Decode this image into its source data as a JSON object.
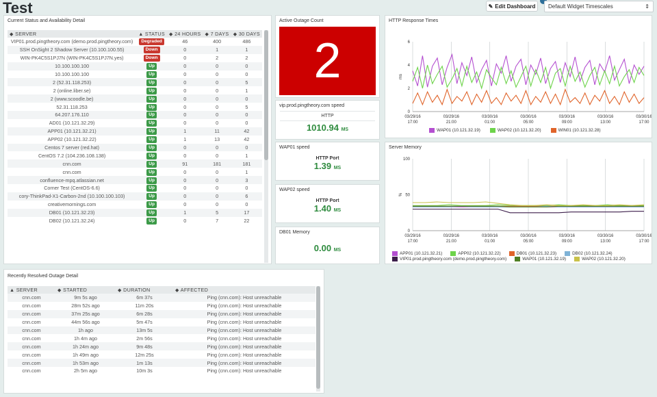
{
  "page": {
    "title": "Test"
  },
  "toolbar": {
    "edit_label": "Edit Dashboard",
    "edit_icon": "✎",
    "timescale": "Default Widget Timescales",
    "timescale_icon": "⇕"
  },
  "status": {
    "title": "Current Status and Availability Detail",
    "headers": {
      "server": "◆ SERVER",
      "status": "▲ STATUS",
      "h24": "◆ 24 HOURS",
      "d7": "◆ 7 DAYS",
      "d30": "◆ 30 DAYS"
    },
    "rows": [
      {
        "server": "VIP01.prod.pingtheory.com (demo.prod.pingtheory.com)",
        "status": "Degraded",
        "h24": "46",
        "d7": "400",
        "d30": "486"
      },
      {
        "server": "SSH OnSight 2 Shadow Server (10.100.100.55)",
        "status": "Down",
        "h24": "0",
        "d7": "1",
        "d30": "1"
      },
      {
        "server": "WIN-PK4C5S1PJ7N (WIN-PK4C5S1PJ7N.yes)",
        "status": "Down",
        "h24": "0",
        "d7": "2",
        "d30": "2"
      },
      {
        "server": "10.100.100.100",
        "status": "Up",
        "h24": "0",
        "d7": "0",
        "d30": "0"
      },
      {
        "server": "10.100.100.100",
        "status": "Up",
        "h24": "0",
        "d7": "0",
        "d30": "0"
      },
      {
        "server": "2 (52.31.118.253)",
        "status": "Up",
        "h24": "0",
        "d7": "0",
        "d30": "5"
      },
      {
        "server": "2 (online.liber.se)",
        "status": "Up",
        "h24": "0",
        "d7": "0",
        "d30": "1"
      },
      {
        "server": "2 (www.scoodle.be)",
        "status": "Up",
        "h24": "0",
        "d7": "0",
        "d30": "0"
      },
      {
        "server": "52.31.118.253",
        "status": "Up",
        "h24": "0",
        "d7": "0",
        "d30": "5"
      },
      {
        "server": "64.207.176.110",
        "status": "Up",
        "h24": "0",
        "d7": "0",
        "d30": "0"
      },
      {
        "server": "AD01 (10.121.32.29)",
        "status": "Up",
        "h24": "0",
        "d7": "0",
        "d30": "0"
      },
      {
        "server": "APP01 (10.121.32.21)",
        "status": "Up",
        "h24": "1",
        "d7": "11",
        "d30": "42"
      },
      {
        "server": "APP02 (10.121.32.22)",
        "status": "Up",
        "h24": "1",
        "d7": "13",
        "d30": "42"
      },
      {
        "server": "Centos 7 server (red.hat)",
        "status": "Up",
        "h24": "0",
        "d7": "0",
        "d30": "0"
      },
      {
        "server": "CentOS 7.2 (104.236.108.138)",
        "status": "Up",
        "h24": "0",
        "d7": "0",
        "d30": "1"
      },
      {
        "server": "cnn.com",
        "status": "Up",
        "h24": "91",
        "d7": "181",
        "d30": "181"
      },
      {
        "server": "cnn.com",
        "status": "Up",
        "h24": "0",
        "d7": "0",
        "d30": "1"
      },
      {
        "server": "confluence-mpq.atlassian.net",
        "status": "Up",
        "h24": "0",
        "d7": "0",
        "d30": "3"
      },
      {
        "server": "Corner Test (CentOS-6.6)",
        "status": "Up",
        "h24": "0",
        "d7": "0",
        "d30": "0"
      },
      {
        "server": "cory-ThinkPad-X1-Carbon-2nd (10.100.100.103)",
        "status": "Up",
        "h24": "0",
        "d7": "0",
        "d30": "6"
      },
      {
        "server": "creativemornings.com",
        "status": "Up",
        "h24": "0",
        "d7": "0",
        "d30": "0"
      },
      {
        "server": "DB01 (10.121.32.23)",
        "status": "Up",
        "h24": "1",
        "d7": "5",
        "d30": "17"
      },
      {
        "server": "DB02 (10.121.32.24)",
        "status": "Up",
        "h24": "0",
        "d7": "7",
        "d30": "22"
      }
    ]
  },
  "outage": {
    "title": "Active Outage Count",
    "count": "2"
  },
  "vip_speed": {
    "title": "vip.prod.pingtheory.com speed",
    "label": "HTTP",
    "value": "1010.94",
    "unit": "MS"
  },
  "wap01_speed": {
    "title": "WAP01 speed",
    "label": "HTTP Port",
    "value": "1.39",
    "unit": "MS"
  },
  "wap02_speed": {
    "title": "WAP02 speed",
    "label": "HTTP Port",
    "value": "1.40",
    "unit": "MS"
  },
  "db01_memory": {
    "title": "DB01 Memory",
    "value": "0.00",
    "unit": "MS"
  },
  "resolved": {
    "title": "Recently Resolved Outage Detail",
    "headers": {
      "server": "▲ SERVER",
      "started": "◆ STARTED",
      "duration": "◆ DURATION",
      "affected": "◆ AFFECTED"
    },
    "rows": [
      {
        "server": "cnn.com",
        "started": "9m 5s ago",
        "duration": "6m 37s",
        "affected": "Ping (cnn.com): Host unreachable"
      },
      {
        "server": "cnn.com",
        "started": "28m 52s ago",
        "duration": "11m 20s",
        "affected": "Ping (cnn.com): Host unreachable"
      },
      {
        "server": "cnn.com",
        "started": "37m 25s ago",
        "duration": "6m 28s",
        "affected": "Ping (cnn.com): Host unreachable"
      },
      {
        "server": "cnn.com",
        "started": "44m 56s ago",
        "duration": "5m 47s",
        "affected": "Ping (cnn.com): Host unreachable"
      },
      {
        "server": "cnn.com",
        "started": "1h ago",
        "duration": "13m 5s",
        "affected": "Ping (cnn.com): Host unreachable"
      },
      {
        "server": "cnn.com",
        "started": "1h 4m ago",
        "duration": "2m 56s",
        "affected": "Ping (cnn.com): Host unreachable"
      },
      {
        "server": "cnn.com",
        "started": "1h 24m ago",
        "duration": "9m 48s",
        "affected": "Ping (cnn.com): Host unreachable"
      },
      {
        "server": "cnn.com",
        "started": "1h 49m ago",
        "duration": "12m 25s",
        "affected": "Ping (cnn.com): Host unreachable"
      },
      {
        "server": "cnn.com",
        "started": "1h 53m ago",
        "duration": "1m 13s",
        "affected": "Ping (cnn.com): Host unreachable"
      },
      {
        "server": "cnn.com",
        "started": "2h 5m ago",
        "duration": "10m 3s",
        "affected": "Ping (cnn.com): Host unreachable"
      }
    ]
  },
  "colors": {
    "degraded": "#c9382f",
    "down": "#c9382f",
    "up": "#3c9a48",
    "outage_bg": "#cc0000",
    "value_green": "#2e8b3e"
  },
  "chart_data": [
    {
      "type": "line",
      "title": "HTTP Response Times",
      "ylabel": "ms",
      "ylim": [
        0,
        6
      ],
      "yticks": [
        "0",
        "2",
        "4",
        "6"
      ],
      "xticks": [
        "03/29/16 17:00",
        "03/29/16 21:00",
        "03/30/16 01:00",
        "03/30/16 05:00",
        "03/30/16 09:00",
        "03/30/16 13:00",
        "03/30/16 17:00"
      ],
      "series": [
        {
          "name": "WAP01 (10.121.32.19)",
          "color": "#b44fd0",
          "values": [
            3.5,
            2.2,
            4.8,
            2.1,
            3.9,
            4.6,
            2.3,
            3.8,
            4.9,
            2.4,
            4.2,
            3.1,
            4.7,
            2.5,
            3.6,
            4.4,
            2.2,
            4.1,
            3.3,
            4.8,
            2.6,
            3.9,
            4.5,
            2.3,
            4.0,
            3.2,
            4.6,
            2.4,
            3.7,
            4.3,
            2.5,
            4.2,
            3.0,
            4.7,
            2.6,
            3.8,
            4.4,
            2.3,
            4.1,
            3.4,
            4.8,
            2.7,
            3.6,
            4.5,
            2.4,
            4.0,
            3.2,
            3.9
          ]
        },
        {
          "name": "WAP02 (10.121.32.20)",
          "color": "#6dd34a",
          "values": [
            2.6,
            3.8,
            2.0,
            4.0,
            2.4,
            3.2,
            3.9,
            2.1,
            2.8,
            3.7,
            2.2,
            3.9,
            2.5,
            3.4,
            2.0,
            3.6,
            2.9,
            2.3,
            3.8,
            2.4,
            3.5,
            2.1,
            3.0,
            3.9,
            2.2,
            3.6,
            2.5,
            3.8,
            2.0,
            3.3,
            3.7,
            2.2,
            3.9,
            2.6,
            3.4,
            2.1,
            3.1,
            3.8,
            2.3,
            3.5,
            2.4,
            3.9,
            2.2,
            3.0,
            3.6,
            2.5,
            3.8,
            3.1
          ]
        },
        {
          "name": "WIN01 (10.121.32.28)",
          "color": "#e0642a",
          "values": [
            0.7,
            1.6,
            0.6,
            1.7,
            0.8,
            1.4,
            0.6,
            1.9,
            0.7,
            1.3,
            0.9,
            1.7,
            0.6,
            1.5,
            0.8,
            1.8,
            0.7,
            1.2,
            0.6,
            1.6,
            0.9,
            1.4,
            0.7,
            1.8,
            0.6,
            1.3,
            0.8,
            1.7,
            0.7,
            1.5,
            0.6,
            1.9,
            0.8,
            1.2,
            0.7,
            1.6,
            0.6,
            1.4,
            0.9,
            1.8,
            0.7,
            1.3,
            0.6,
            1.7,
            0.8,
            1.5,
            0.7,
            1.2
          ]
        }
      ]
    },
    {
      "type": "line",
      "title": "Server Memory",
      "ylabel": "%",
      "ylim": [
        0,
        100
      ],
      "yticks": [
        "0",
        "50",
        "100"
      ],
      "xticks": [
        "03/29/16 17:00",
        "03/29/16 21:00",
        "03/30/16 01:00",
        "03/30/16 05:00",
        "03/30/16 09:00",
        "03/30/16 13:00",
        "03/30/16 17:00"
      ],
      "series": [
        {
          "name": "APP01 (10.121.32.21)",
          "color": "#b44fd0",
          "values": [
            33,
            33,
            33,
            33,
            33,
            33,
            33,
            33,
            33,
            33,
            33,
            33,
            33,
            33,
            33,
            33,
            33,
            33,
            33,
            33
          ]
        },
        {
          "name": "APP02 (10.121.32.22)",
          "color": "#6dd34a",
          "values": [
            35,
            35,
            35,
            36,
            35,
            35,
            35,
            36,
            35,
            35,
            35,
            35,
            36,
            35,
            35,
            35,
            36,
            35,
            35,
            35
          ]
        },
        {
          "name": "DB01 (10.121.32.23)",
          "color": "#e0642a",
          "values": [
            34,
            34,
            34,
            34,
            34,
            34,
            34,
            34,
            34,
            34,
            34,
            34,
            34,
            34,
            34,
            34,
            34,
            34,
            34,
            34
          ]
        },
        {
          "name": "DB02 (10.121.32.24)",
          "color": "#7fb2d6",
          "values": [
            33,
            33,
            33,
            33,
            34,
            33,
            33,
            33,
            33,
            33,
            33,
            34,
            33,
            33,
            33,
            33,
            33,
            33,
            33,
            33
          ]
        },
        {
          "name": "VIP01.prod.pingtheory.com (demo.prod.pingtheory.com)",
          "color": "#3b1d4a",
          "values": [
            30,
            30,
            30,
            30,
            30,
            30,
            30,
            30,
            25,
            25,
            25,
            25,
            25,
            26,
            26,
            26,
            26,
            26,
            27,
            27
          ]
        },
        {
          "name": "WAP01 (10.121.32.19)",
          "color": "#4f7f23",
          "values": [
            34,
            34,
            34,
            34,
            34,
            34,
            34,
            34,
            33,
            33,
            33,
            33,
            34,
            34,
            34,
            34,
            34,
            34,
            34,
            34
          ]
        },
        {
          "name": "WAP02 (10.121.32.20)",
          "color": "#c9c24a",
          "values": [
            39,
            39,
            40,
            39,
            39,
            39,
            40,
            38,
            36,
            35,
            35,
            36,
            35,
            35,
            36,
            35,
            35,
            36,
            35,
            36
          ]
        }
      ]
    }
  ]
}
